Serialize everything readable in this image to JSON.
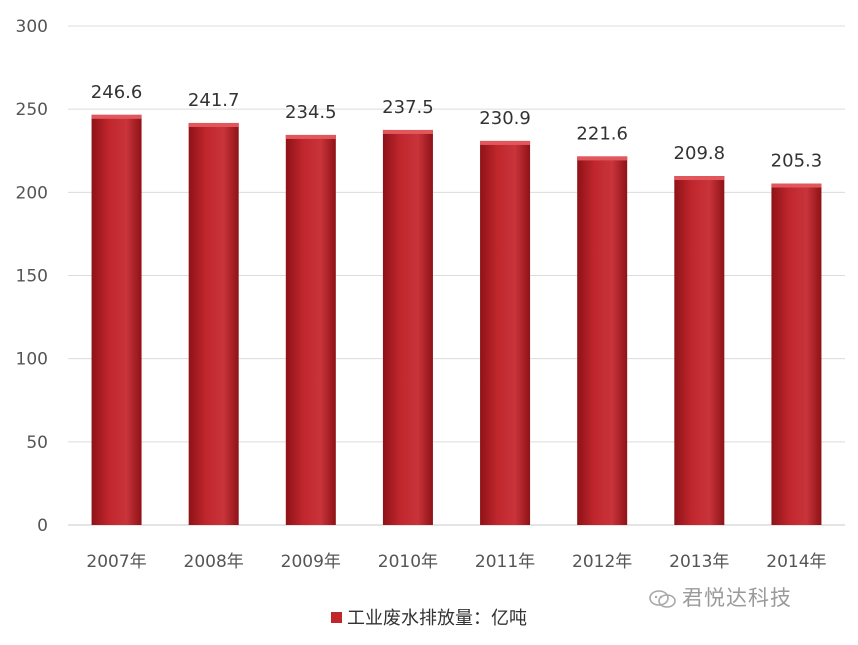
{
  "chart_data": {
    "type": "bar",
    "categories": [
      "2007年",
      "2008年",
      "2009年",
      "2010年",
      "2011年",
      "2012年",
      "2013年",
      "2014年"
    ],
    "series": [
      {
        "name": "工业废水排放量：亿吨",
        "values": [
          246.6,
          241.7,
          234.5,
          237.5,
          230.9,
          221.6,
          209.8,
          205.3
        ]
      }
    ],
    "data_labels": [
      "246.6",
      "241.7",
      "234.5",
      "237.5",
      "230.9",
      "221.6",
      "209.8",
      "205.3"
    ],
    "y_ticks": [
      "0",
      "50",
      "100",
      "150",
      "200",
      "250",
      "300"
    ],
    "ylim": [
      0,
      300
    ],
    "title": "",
    "xlabel": "",
    "ylabel": "",
    "grid": true,
    "legend_position": "bottom",
    "colors": {
      "bar": "#c0272d",
      "bar_dark": "#8e1217",
      "grid": "#dcdcdc"
    }
  },
  "legend": {
    "label": "工业废水排放量：亿吨"
  },
  "watermark": {
    "text": "君悦达科技",
    "icon": "wechat-icon"
  }
}
